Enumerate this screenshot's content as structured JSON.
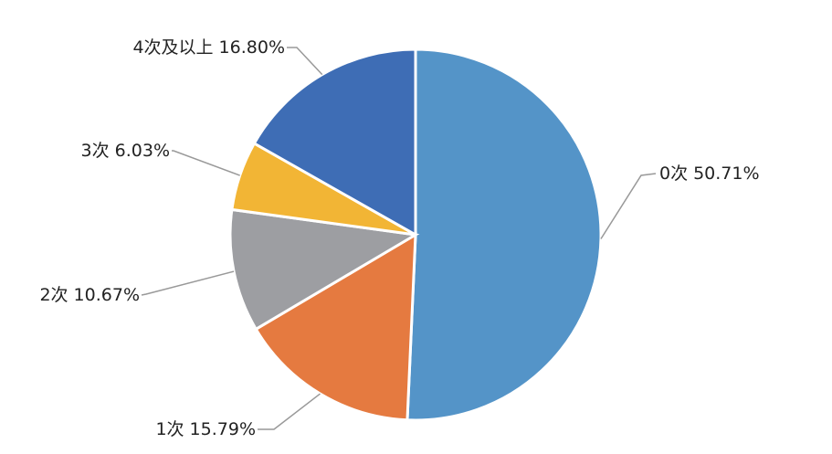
{
  "chart_data": {
    "type": "pie",
    "categories": [
      "0次",
      "1次",
      "2次",
      "3次",
      "4次及以上"
    ],
    "values": [
      50.71,
      15.79,
      10.67,
      6.03,
      16.8
    ],
    "value_labels": [
      "50.71%",
      "15.79%",
      "10.67%",
      "6.03%",
      "16.80%"
    ],
    "colors": [
      "#5494c8",
      "#e57a40",
      "#9d9ea2",
      "#f2b535",
      "#3e6db5"
    ]
  }
}
